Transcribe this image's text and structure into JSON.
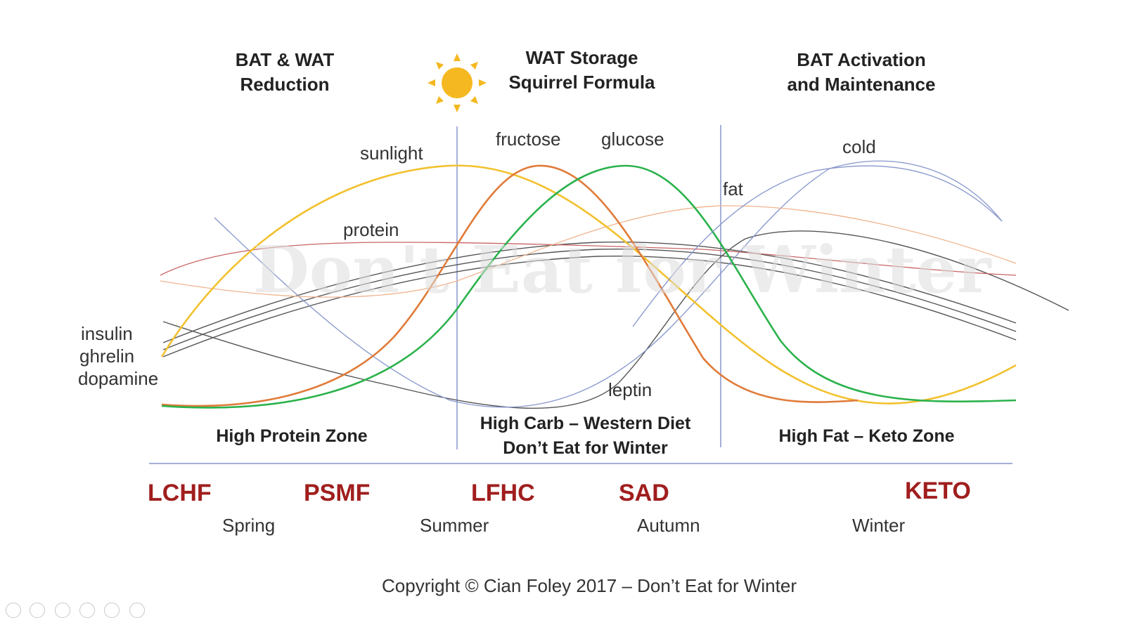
{
  "zone_headings": {
    "left": [
      "BAT & WAT",
      "Reduction"
    ],
    "center": [
      "WAT Storage",
      "Squirrel Formula"
    ],
    "right": [
      "BAT Activation",
      "and Maintenance"
    ]
  },
  "curve_labels": {
    "sunlight": "sunlight",
    "fructose": "fructose",
    "glucose": "glucose",
    "cold": "cold",
    "fat": "fat",
    "protein": "protein",
    "insulin": "insulin",
    "ghrelin": "ghrelin",
    "dopamine": "dopamine",
    "leptin": "leptin"
  },
  "zone_names": {
    "left": [
      "High Protein Zone"
    ],
    "center": [
      "High Carb – Western Diet",
      "Don’t Eat for Winter"
    ],
    "right": [
      "High Fat – Keto Zone"
    ]
  },
  "diets": [
    "LCHF",
    "PSMF",
    "LFHC",
    "SAD",
    "KETO"
  ],
  "seasons": [
    "Spring",
    "Summer",
    "Autumn",
    "Winter"
  ],
  "watermark": "Don't Eat for Winter",
  "copyright": "Copyright © Cian Foley 2017 – Don’t Eat for Winter",
  "colors": {
    "sunlight": "#f2c12e",
    "fructose": "#e07b39",
    "glucose": "#2bb24c",
    "cold": "#8796cc",
    "fat": "#f0b48e",
    "protein": "#c86464",
    "hormones": "#555555",
    "diet_text": "#a01e1e",
    "divider": "#8796cc"
  }
}
